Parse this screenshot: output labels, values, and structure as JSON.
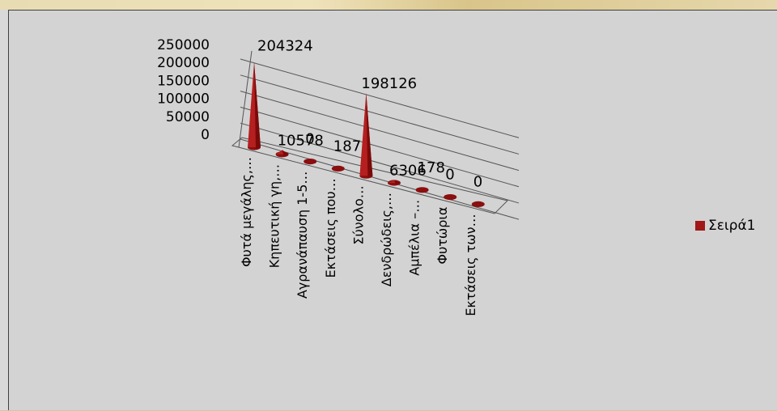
{
  "chart_data": {
    "type": "bar",
    "subtype": "3d-cone",
    "categories": [
      "Φυτά μεγάλης,…",
      "Κηπευτική γη,…",
      "Αγρανάπαυση 1-5…",
      "Εκτάσεις που…",
      "Σύνολο…",
      "Δενδρώδεις,…",
      "Αμπέλια –…",
      "Φυτώρια",
      "Εκτάσεις των…"
    ],
    "series": [
      {
        "name": "Σειρά1",
        "values": [
          204324,
          10578,
          0,
          187,
          198126,
          6306,
          178,
          0,
          0
        ]
      }
    ],
    "data_labels": [
      "204324",
      "10578",
      "0",
      "187",
      "198126",
      "6306",
      "178",
      "0",
      "0"
    ],
    "yticks": [
      "250000",
      "200000",
      "150000",
      "100000",
      "50000",
      "0"
    ],
    "ylim": [
      0,
      250000
    ],
    "grid": true,
    "legend_position": "right",
    "bar_color": "#a21818"
  },
  "legend": {
    "label": "Σειρά1"
  }
}
